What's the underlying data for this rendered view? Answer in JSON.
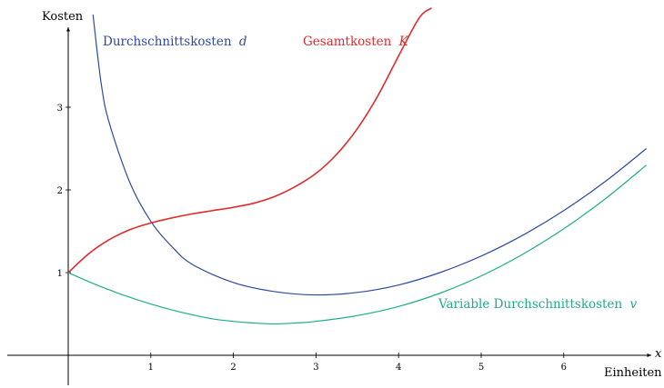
{
  "chart_data": {
    "type": "line",
    "ylabel": "Kosten",
    "xlabel_var": "x",
    "xlabel": "Einheiten",
    "xlim": [
      -0.75,
      7.1
    ],
    "ylim": [
      -1.45,
      4.2
    ],
    "x_ticks": [
      1,
      2,
      3,
      4,
      5,
      6
    ],
    "y_ticks": [
      1,
      2,
      3
    ],
    "grid": false,
    "series": [
      {
        "name": "Durchschnittskosten",
        "symbol": "d",
        "color": "#2e4aa0",
        "x": [
          0.3,
          0.4,
          0.5,
          0.75,
          1.0,
          1.25,
          1.5,
          2.0,
          2.5,
          3.0,
          3.5,
          4.0,
          4.5,
          5.0,
          5.5,
          6.0,
          6.5,
          7.0
        ],
        "y": [
          4.12,
          3.28,
          2.8,
          2.08,
          1.62,
          1.32,
          1.1,
          0.88,
          0.77,
          0.73,
          0.76,
          0.85,
          1.0,
          1.2,
          1.45,
          1.75,
          2.1,
          2.5
        ]
      },
      {
        "name": "Gesamtkosten",
        "symbol": "K",
        "color": "#e02b2b",
        "x": [
          0.0,
          0.25,
          0.5,
          0.75,
          1.0,
          1.25,
          1.5,
          1.75,
          2.0,
          2.25,
          2.5,
          2.75,
          3.0,
          3.25,
          3.5,
          3.75,
          4.0,
          4.25,
          4.4
        ],
        "y": [
          1.0,
          1.23,
          1.4,
          1.52,
          1.6,
          1.66,
          1.71,
          1.75,
          1.79,
          1.84,
          1.92,
          2.04,
          2.2,
          2.43,
          2.74,
          3.14,
          3.62,
          4.08,
          4.2
        ]
      },
      {
        "name": "Variable Durchschnittskosten",
        "symbol": "v",
        "color": "#1fad86",
        "x": [
          0.0,
          0.25,
          0.5,
          0.75,
          1.0,
          1.25,
          1.5,
          1.75,
          2.0,
          2.25,
          2.5,
          2.75,
          3.0,
          3.5,
          4.0,
          4.5,
          5.0,
          5.5,
          6.0,
          6.5,
          7.0
        ],
        "y": [
          1.0,
          0.89,
          0.79,
          0.7,
          0.62,
          0.55,
          0.49,
          0.44,
          0.41,
          0.39,
          0.38,
          0.39,
          0.41,
          0.48,
          0.59,
          0.75,
          0.96,
          1.22,
          1.53,
          1.89,
          2.3
        ]
      }
    ]
  }
}
